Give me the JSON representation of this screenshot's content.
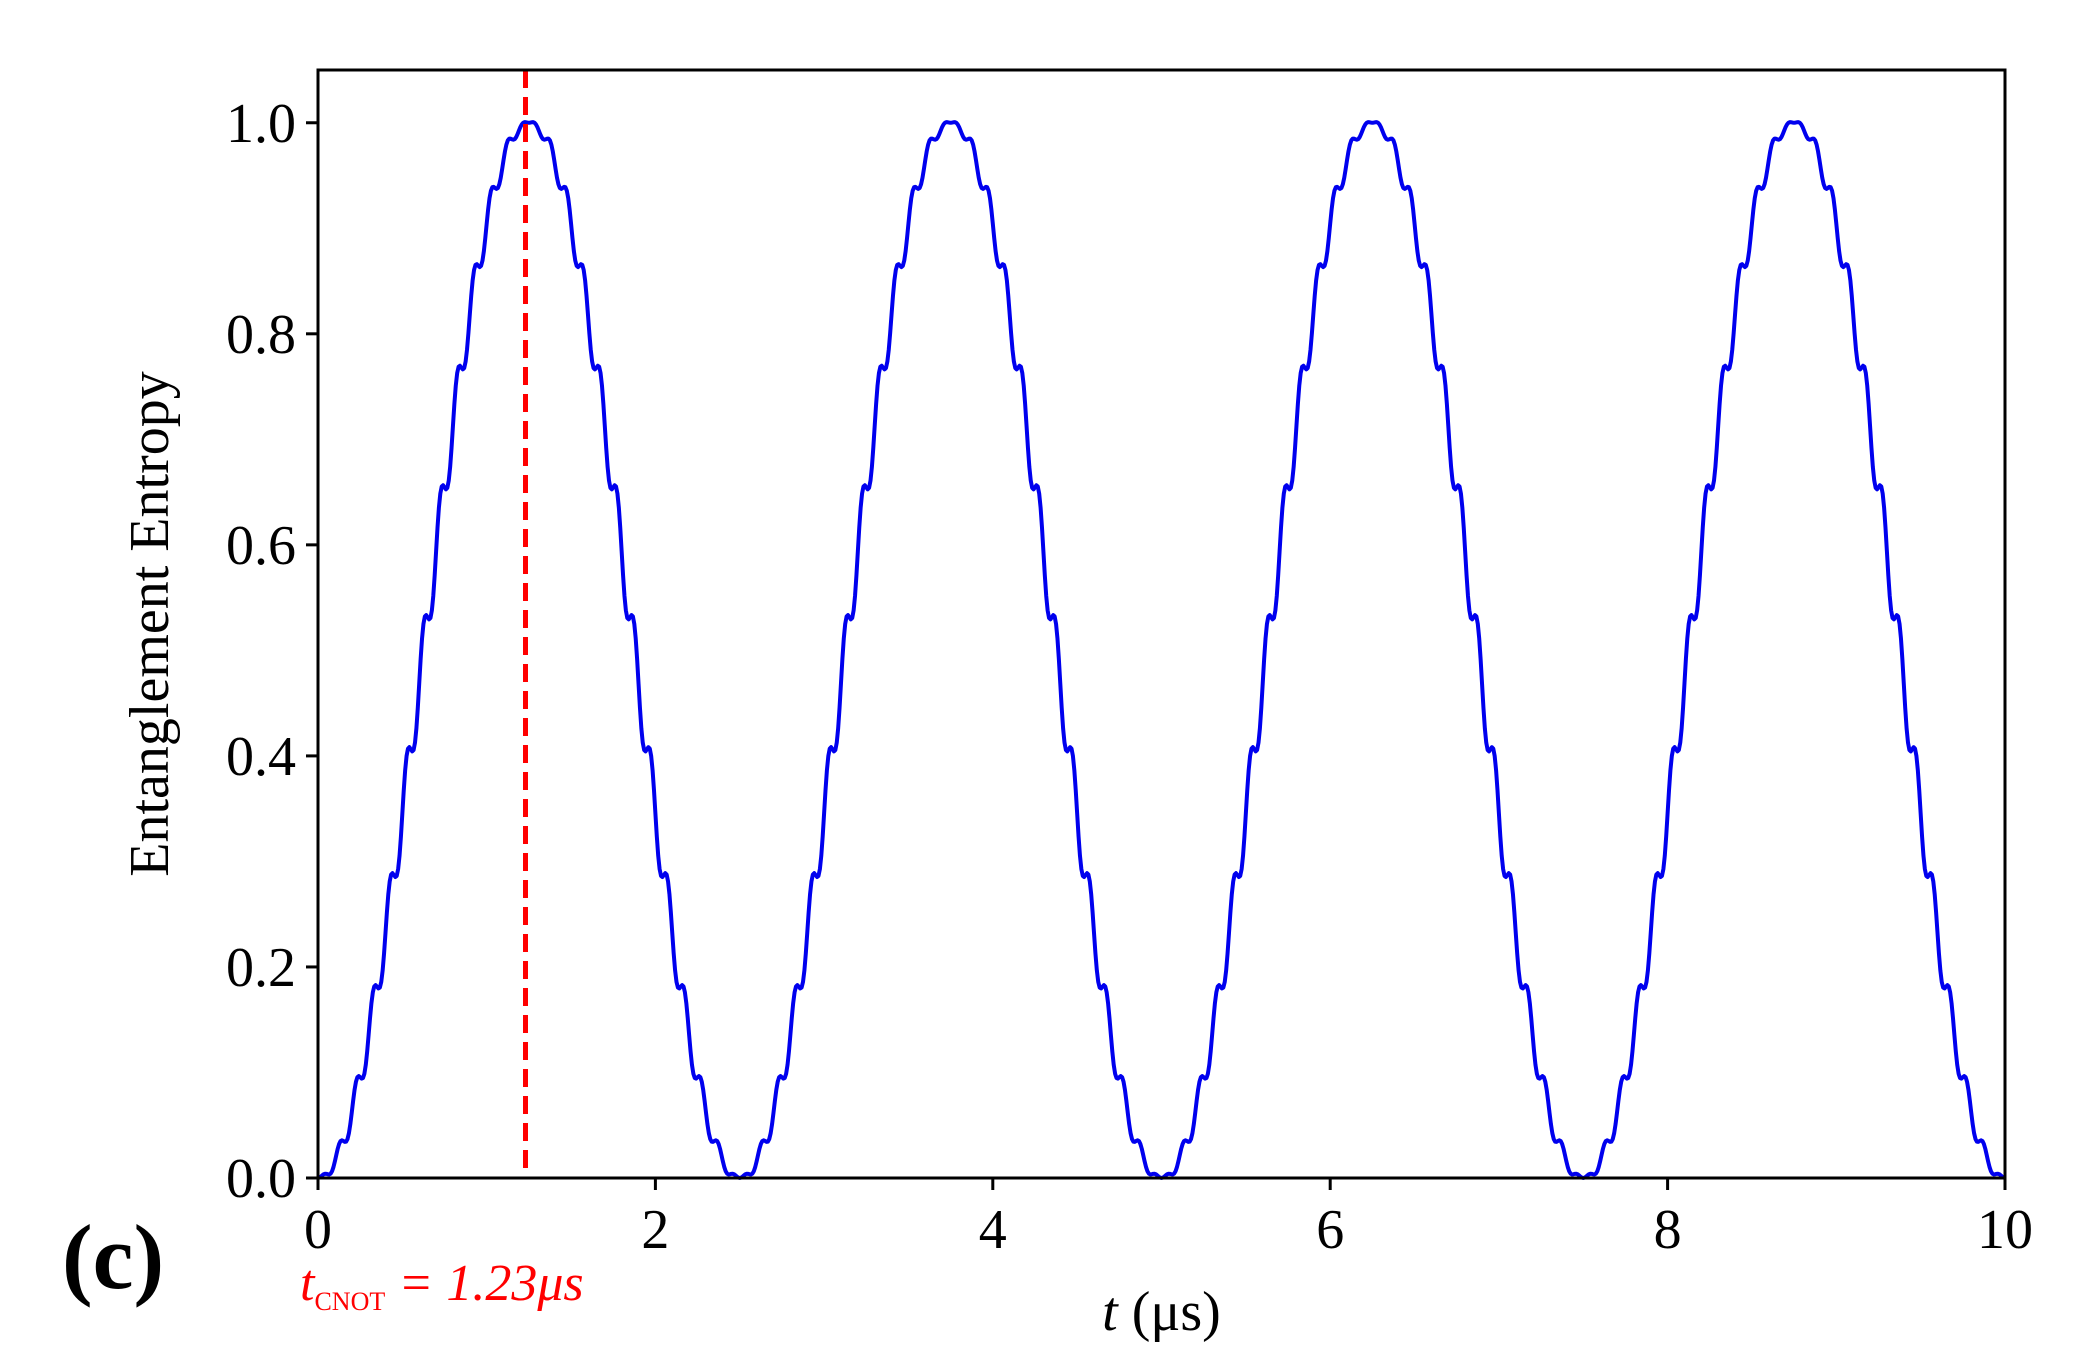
{
  "chart_data": {
    "type": "line",
    "xlabel": "t (μs)",
    "ylabel": "Entanglement Entropy",
    "xlim": [
      0,
      10
    ],
    "ylim": [
      0,
      1.05
    ],
    "xticks": [
      0,
      2,
      4,
      6,
      8,
      10
    ],
    "xtick_labels": [
      "0",
      "2",
      "4",
      "6",
      "8",
      "10"
    ],
    "yticks": [
      0.0,
      0.2,
      0.4,
      0.6,
      0.8,
      1.0
    ],
    "ytick_labels": [
      "0.0",
      "0.2",
      "0.4",
      "0.6",
      "0.8",
      "1.0"
    ],
    "grid": false,
    "panel_label": "(c)",
    "annotation": {
      "text_main": "t",
      "text_sub": "CNOT",
      "text_rest": " = 1.23μs",
      "x": 1.23,
      "color": "#ff0000",
      "style": "dashed"
    },
    "series": [
      {
        "color": "#0000ee",
        "model": {
          "main_period": 2.5,
          "main_amplitude": 0.5,
          "ripple_frequency": 10.0,
          "ripple_amplitude": 0.025
        },
        "x": [
          0,
          0.25,
          0.5,
          0.75,
          1.0,
          1.25,
          1.5,
          1.75,
          2.0,
          2.25,
          2.5,
          2.75,
          3.0,
          3.25,
          3.5,
          3.75,
          4.0,
          4.25,
          4.5,
          4.75,
          5.0,
          5.25,
          5.5,
          5.75,
          6.0,
          6.25,
          6.5,
          6.75,
          7.0,
          7.25,
          7.5,
          7.75,
          8.0,
          8.25,
          8.5,
          8.75,
          9.0,
          9.25,
          9.5,
          9.75,
          10.0
        ],
        "y": [
          0.0,
          0.12,
          0.32,
          0.65,
          0.88,
          1.02,
          0.92,
          0.68,
          0.42,
          0.16,
          0.02,
          0.25,
          0.58,
          0.85,
          0.98,
          1.02,
          0.9,
          0.62,
          0.3,
          0.12,
          0.05,
          0.2,
          0.5,
          0.8,
          0.96,
          1.02,
          0.88,
          0.6,
          0.36,
          0.17,
          0.08,
          0.28,
          0.6,
          0.86,
          0.99,
          1.01,
          0.88,
          0.58,
          0.27,
          0.1,
          0.02
        ]
      }
    ]
  }
}
